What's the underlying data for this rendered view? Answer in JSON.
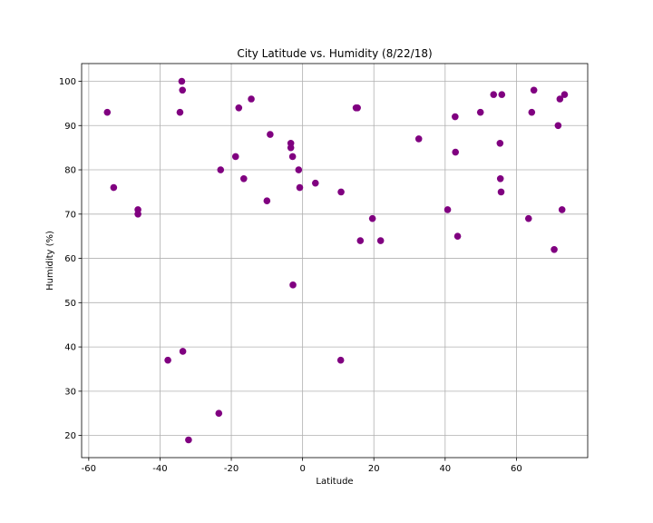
{
  "chart_data": {
    "type": "scatter",
    "title": "City Latitude vs. Humidity (8/22/18)",
    "xlabel": "Latitude",
    "ylabel": "Humidity (%)",
    "xlim": [
      -62,
      80
    ],
    "ylim": [
      15,
      104
    ],
    "xticks": [
      -60,
      -40,
      -20,
      0,
      20,
      40,
      60
    ],
    "yticks": [
      20,
      30,
      40,
      50,
      60,
      70,
      80,
      90,
      100
    ],
    "grid": true,
    "marker_color": "#800080",
    "points": [
      {
        "x": -54.8,
        "y": 93
      },
      {
        "x": -53.0,
        "y": 76
      },
      {
        "x": -46.2,
        "y": 71
      },
      {
        "x": -46.2,
        "y": 70
      },
      {
        "x": -37.8,
        "y": 37
      },
      {
        "x": -34.4,
        "y": 93
      },
      {
        "x": -33.9,
        "y": 100
      },
      {
        "x": -33.7,
        "y": 98
      },
      {
        "x": -33.6,
        "y": 39
      },
      {
        "x": -32.0,
        "y": 19
      },
      {
        "x": -23.5,
        "y": 25
      },
      {
        "x": -23.0,
        "y": 80
      },
      {
        "x": -18.8,
        "y": 83
      },
      {
        "x": -17.9,
        "y": 94
      },
      {
        "x": -16.5,
        "y": 78
      },
      {
        "x": -14.4,
        "y": 96
      },
      {
        "x": -10.0,
        "y": 73
      },
      {
        "x": -9.1,
        "y": 88
      },
      {
        "x": -3.3,
        "y": 86
      },
      {
        "x": -3.3,
        "y": 85
      },
      {
        "x": -2.8,
        "y": 83
      },
      {
        "x": -2.7,
        "y": 54
      },
      {
        "x": -1.1,
        "y": 80
      },
      {
        "x": -0.8,
        "y": 76
      },
      {
        "x": 3.6,
        "y": 77
      },
      {
        "x": 10.8,
        "y": 75
      },
      {
        "x": 10.7,
        "y": 37
      },
      {
        "x": 15.0,
        "y": 94
      },
      {
        "x": 15.4,
        "y": 94
      },
      {
        "x": 16.2,
        "y": 64
      },
      {
        "x": 19.6,
        "y": 69
      },
      {
        "x": 21.9,
        "y": 64
      },
      {
        "x": 32.6,
        "y": 87
      },
      {
        "x": 40.7,
        "y": 71
      },
      {
        "x": 42.8,
        "y": 92
      },
      {
        "x": 42.9,
        "y": 84
      },
      {
        "x": 43.5,
        "y": 65
      },
      {
        "x": 49.9,
        "y": 93
      },
      {
        "x": 53.6,
        "y": 97
      },
      {
        "x": 55.4,
        "y": 86
      },
      {
        "x": 55.5,
        "y": 78
      },
      {
        "x": 55.7,
        "y": 75
      },
      {
        "x": 55.9,
        "y": 97
      },
      {
        "x": 63.4,
        "y": 69
      },
      {
        "x": 64.3,
        "y": 93
      },
      {
        "x": 64.9,
        "y": 98
      },
      {
        "x": 70.6,
        "y": 62
      },
      {
        "x": 71.7,
        "y": 90
      },
      {
        "x": 72.2,
        "y": 96
      },
      {
        "x": 72.8,
        "y": 71
      },
      {
        "x": 73.5,
        "y": 97
      }
    ]
  }
}
